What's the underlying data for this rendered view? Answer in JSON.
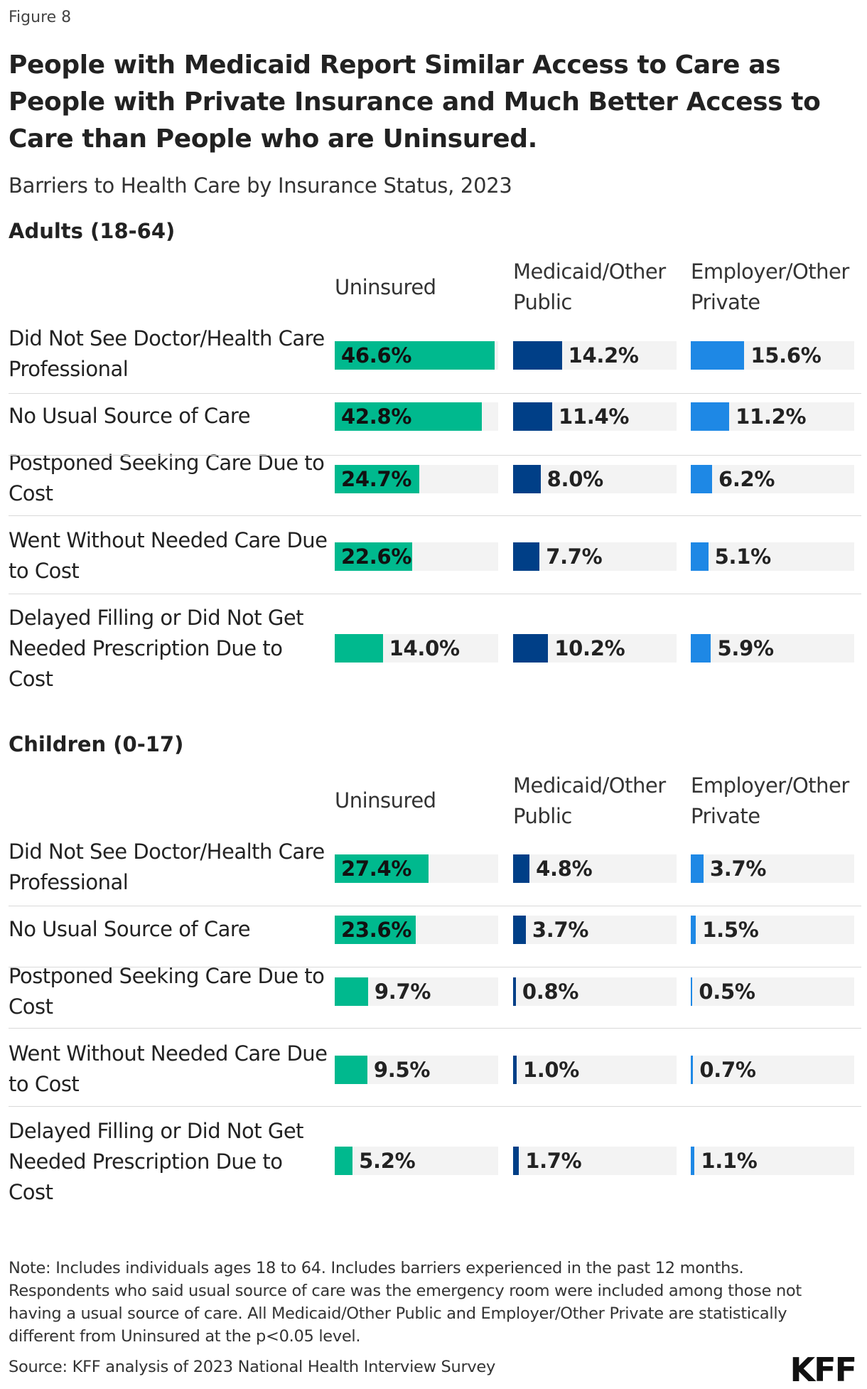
{
  "figure_label": "Figure 8",
  "chart_data": {
    "type": "bar",
    "title": "People with Medicaid Report Similar Access to Care as People with Private Insurance and Much Better Access to Care than People who are Uninsured.",
    "subtitle": "Barriers to Health Care by Insurance Status, 2023",
    "value_suffix": "%",
    "xlim": [
      0,
      100
    ],
    "colors": {
      "Uninsured": "#00b98e",
      "Medicaid/Other Public": "#003f87",
      "Employer/Other Private": "#1e88e5",
      "track": "#f3f3f3"
    },
    "columns": [
      "Uninsured",
      "Medicaid/Other Public",
      "Employer/Other Private"
    ],
    "categories": [
      "Did Not See Doctor/Health Care Professional",
      "No Usual Source of Care",
      "Postponed Seeking Care Due to Cost",
      "Went Without Needed Care Due to Cost",
      "Delayed Filling or Did Not Get Needed Prescription Due to Cost"
    ],
    "panels": [
      {
        "title": "Adults (18-64)",
        "series": [
          {
            "name": "Uninsured",
            "values": [
              46.6,
              42.8,
              24.7,
              22.6,
              14.0
            ]
          },
          {
            "name": "Medicaid/Other Public",
            "values": [
              14.2,
              11.4,
              8.0,
              7.7,
              10.2
            ]
          },
          {
            "name": "Employer/Other Private",
            "values": [
              15.6,
              11.2,
              6.2,
              5.1,
              5.9
            ]
          }
        ]
      },
      {
        "title": "Children (0-17)",
        "series": [
          {
            "name": "Uninsured",
            "values": [
              27.4,
              23.6,
              9.7,
              9.5,
              5.2
            ]
          },
          {
            "name": "Medicaid/Other Public",
            "values": [
              4.8,
              3.7,
              0.8,
              1.0,
              1.7
            ]
          },
          {
            "name": "Employer/Other Private",
            "values": [
              3.7,
              1.5,
              0.5,
              0.7,
              1.1
            ]
          }
        ]
      }
    ]
  },
  "note": "Note: Includes individuals ages 18 to 64. Includes barriers experienced in the past 12 months. Respondents who said usual source of care was the emergency room were included among those not having a usual source of care. All Medicaid/Other Public and Employer/Other Private are statistically different from Uninsured at the p<0.05 level.",
  "source": "Source: KFF analysis of 2023 National Health Interview Survey",
  "logo_text": "KFF"
}
